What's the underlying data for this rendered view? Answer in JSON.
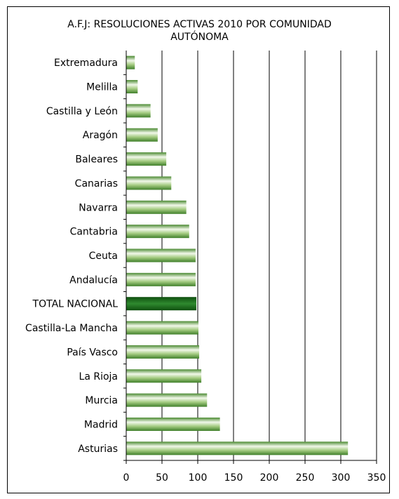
{
  "chart_data": {
    "type": "bar",
    "orientation": "horizontal",
    "title_line1": "A.F.J: RESOLUCIONES ACTIVAS 2010 POR COMUNIDAD",
    "title_line2": "AUTÓNOMA",
    "categories": [
      "Extremadura",
      "Melilla",
      "Castilla y León",
      "Aragón",
      "Baleares",
      "Canarias",
      "Navarra",
      "Cantabria",
      "Ceuta",
      "Andalucía",
      "TOTAL NACIONAL",
      "Castilla-La Mancha",
      "País Vasco",
      "La Rioja",
      "Murcia",
      "Madrid",
      "Asturias"
    ],
    "values": [
      12,
      16,
      34,
      44,
      56,
      63,
      84,
      88,
      97,
      97,
      98,
      101,
      102,
      105,
      113,
      131,
      310
    ],
    "highlight_category": "TOTAL NACIONAL",
    "xlim": [
      0,
      350
    ],
    "xticks": [
      0,
      50,
      100,
      150,
      200,
      250,
      300,
      350
    ],
    "grid": "vertical",
    "colors": {
      "bar_light": "#f2f8ea",
      "bar_mid": "#8fbf6a",
      "bar_dark": "#3f7f2a",
      "highlight_light": "#2f8a2f",
      "highlight_dark": "#0f4f0f"
    }
  }
}
